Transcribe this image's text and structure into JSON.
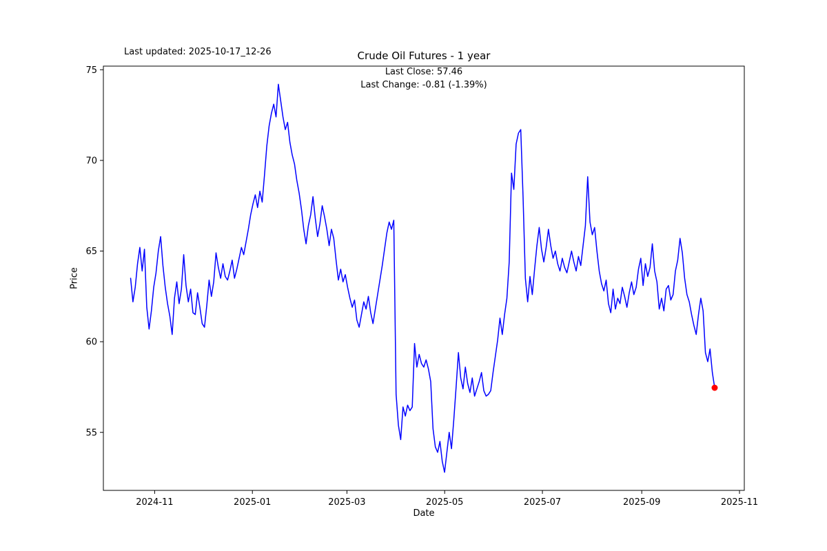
{
  "figure": {
    "title": "Crude Oil Futures - 1 year",
    "last_updated": "Last updated: 2025-10-17_12-26",
    "annotation_line1": "Last Close: 57.46",
    "annotation_line2": "Last Change: -0.81 (-1.39%)",
    "xlabel": "Date",
    "ylabel": "Price"
  },
  "chart_data": {
    "type": "line",
    "title": "Crude Oil Futures - 1 year",
    "xlabel": "Date",
    "ylabel": "Price",
    "last_close": 57.46,
    "last_change": "-0.81 (-1.39%)",
    "line_color": "#0000ff",
    "last_point_color": "#ff0000",
    "background": "#ffffff",
    "grid": false,
    "legend": "none",
    "ylim": [
      51.8,
      75.2
    ],
    "xlim_days": [
      -17,
      383
    ],
    "x_start_day": 0,
    "x_end_day": 364.5,
    "y_ticks": [
      55,
      60,
      65,
      70,
      75
    ],
    "x_ticks": [
      {
        "label": "2024-11",
        "day": 15
      },
      {
        "label": "2025-01",
        "day": 76
      },
      {
        "label": "2025-03",
        "day": 135
      },
      {
        "label": "2025-05",
        "day": 196
      },
      {
        "label": "2025-07",
        "day": 257
      },
      {
        "label": "2025-09",
        "day": 319
      },
      {
        "label": "2025-11",
        "day": 380
      }
    ],
    "prices": [
      63.5,
      62.2,
      63.0,
      64.3,
      65.2,
      63.9,
      65.1,
      61.9,
      60.7,
      61.7,
      63.0,
      63.8,
      65.0,
      65.8,
      64.2,
      63.0,
      62.1,
      61.4,
      60.4,
      62.4,
      63.3,
      62.1,
      62.9,
      64.8,
      63.1,
      62.2,
      62.9,
      61.6,
      61.5,
      62.7,
      61.9,
      61.0,
      60.8,
      62.0,
      63.4,
      62.5,
      63.3,
      64.9,
      64.1,
      63.5,
      64.3,
      63.6,
      63.4,
      63.9,
      64.5,
      63.5,
      64.0,
      64.6,
      65.2,
      64.8,
      65.5,
      66.2,
      67.0,
      67.6,
      68.1,
      67.4,
      68.3,
      67.7,
      69.2,
      70.8,
      71.9,
      72.6,
      73.1,
      72.4,
      74.2,
      73.3,
      72.4,
      71.7,
      72.1,
      71.0,
      70.3,
      69.8,
      68.9,
      68.2,
      67.3,
      66.2,
      65.4,
      66.4,
      67.0,
      68.0,
      66.8,
      65.8,
      66.5,
      67.5,
      66.9,
      66.2,
      65.3,
      66.2,
      65.7,
      64.5,
      63.4,
      64.0,
      63.3,
      63.7,
      63.0,
      62.4,
      61.9,
      62.3,
      61.2,
      60.8,
      61.5,
      62.2,
      61.8,
      62.5,
      61.6,
      61.0,
      61.8,
      62.6,
      63.4,
      64.2,
      65.1,
      66.0,
      66.6,
      66.2,
      66.7,
      57.1,
      55.4,
      54.6,
      56.4,
      55.9,
      56.5,
      56.2,
      56.4,
      59.9,
      58.6,
      59.3,
      58.8,
      58.6,
      59.0,
      58.5,
      57.8,
      55.2,
      54.2,
      53.9,
      54.5,
      53.4,
      52.8,
      53.9,
      55.0,
      54.1,
      55.7,
      57.5,
      59.4,
      58.0,
      57.4,
      58.6,
      57.7,
      57.2,
      58.0,
      57.0,
      57.4,
      57.8,
      58.3,
      57.3,
      57.0,
      57.1,
      57.3,
      58.3,
      59.2,
      60.1,
      61.3,
      60.4,
      61.5,
      62.4,
      64.4,
      69.3,
      68.4,
      70.9,
      71.5,
      71.7,
      68.0,
      63.5,
      62.2,
      63.6,
      62.6,
      64.0,
      65.3,
      66.3,
      65.1,
      64.4,
      65.2,
      66.2,
      65.3,
      64.6,
      65.0,
      64.3,
      63.9,
      64.6,
      64.1,
      63.8,
      64.4,
      65.0,
      64.4,
      63.9,
      64.7,
      64.2,
      65.3,
      66.4,
      69.1,
      66.6,
      65.9,
      66.3,
      65.0,
      63.9,
      63.2,
      62.8,
      63.4,
      62.1,
      61.6,
      62.9,
      61.8,
      62.4,
      62.1,
      63.0,
      62.5,
      61.9,
      62.7,
      63.3,
      62.6,
      63.0,
      64.0,
      64.6,
      63.1,
      64.3,
      63.6,
      64.1,
      65.4,
      63.9,
      63.3,
      61.8,
      62.4,
      61.7,
      62.9,
      63.1,
      62.3,
      62.6,
      63.9,
      64.5,
      65.7,
      64.9,
      63.5,
      62.6,
      62.2,
      61.5,
      60.9,
      60.4,
      61.5,
      62.4,
      61.7,
      59.4,
      58.9,
      59.6,
      58.3,
      57.46
    ]
  }
}
